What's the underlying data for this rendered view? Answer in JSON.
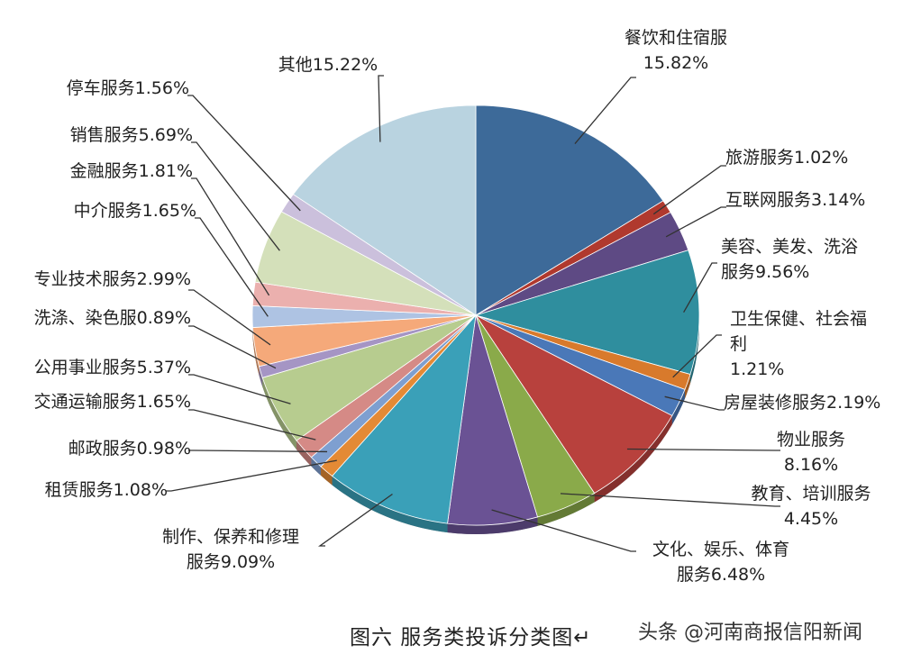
{
  "chart_data": {
    "type": "pie",
    "title": "",
    "caption": "图六  服务类投诉分类图↵",
    "slices": [
      {
        "label": "餐饮和住宿服",
        "value": 15.82,
        "value_label": "15.82%",
        "color": "#3D6A99"
      },
      {
        "label": "旅游服务",
        "value": 1.02,
        "value_label": "1.02%",
        "color": "#B0392E"
      },
      {
        "label": "互联网服务",
        "value": 3.14,
        "value_label": "3.14%",
        "color": "#5E4A84"
      },
      {
        "label": "美容、美发、洗浴服务",
        "value": 9.56,
        "value_label": "9.56%",
        "color": "#2F8E9E"
      },
      {
        "label": "卫生保健、社会福利",
        "value": 1.21,
        "value_label": "1.21%",
        "color": "#D87A2C"
      },
      {
        "label": "房屋装修服务",
        "value": 2.19,
        "value_label": "2.19%",
        "color": "#4A78B8"
      },
      {
        "label": "物业服务",
        "value": 8.16,
        "value_label": "8.16%",
        "color": "#B8413D"
      },
      {
        "label": "教育、培训服务",
        "value": 4.45,
        "value_label": "4.45%",
        "color": "#8AAA4A"
      },
      {
        "label": "文化、娱乐、体育服务",
        "value": 6.48,
        "value_label": "6.48%",
        "color": "#6A5294"
      },
      {
        "label": "制作、保养和修理服务",
        "value": 9.09,
        "value_label": "9.09%",
        "color": "#3AA0B8"
      },
      {
        "label": "租赁服务",
        "value": 1.08,
        "value_label": "1.08%",
        "color": "#E48A35"
      },
      {
        "label": "邮政服务",
        "value": 0.98,
        "value_label": "0.98%",
        "color": "#7E9FD0"
      },
      {
        "label": "交通运输服务",
        "value": 1.65,
        "value_label": "1.65%",
        "color": "#D58A86"
      },
      {
        "label": "公用事业服务",
        "value": 5.37,
        "value_label": "5.37%",
        "color": "#B7CC8F"
      },
      {
        "label": "洗涤、染色服",
        "value": 0.89,
        "value_label": "0.89%",
        "color": "#A595C4"
      },
      {
        "label": "专业技术服务",
        "value": 2.99,
        "value_label": "2.99%",
        "color": "#F5A97A"
      },
      {
        "label": "中介服务",
        "value": 1.65,
        "value_label": "1.65%",
        "color": "#AEC3E3"
      },
      {
        "label": "金融服务",
        "value": 1.81,
        "value_label": "1.81%",
        "color": "#EBB0AE"
      },
      {
        "label": "销售服务",
        "value": 5.69,
        "value_label": "5.69%",
        "color": "#D4E0BA"
      },
      {
        "label": "停车服务",
        "value": 1.56,
        "value_label": "1.56%",
        "color": "#CBC0DC"
      },
      {
        "label": "其他",
        "value": 15.22,
        "value_label": "15.22%",
        "color": "#B9D3E0"
      }
    ],
    "label_lines": [
      [
        "餐饮和住宿服",
        "15.82%"
      ],
      [
        "旅游服务1.02%"
      ],
      [
        "互联网服务3.14%"
      ],
      [
        "美容、美发、洗浴",
        "服务9.56%"
      ],
      [
        "卫生保健、社会福",
        "利",
        "1.21%"
      ],
      [
        "房屋装修服务2.19%"
      ],
      [
        "物业服务",
        "8.16%"
      ],
      [
        "教育、培训服务",
        "4.45%"
      ],
      [
        "文化、娱乐、体育",
        "服务6.48%"
      ],
      [
        "制作、保养和修理",
        "服务9.09%"
      ],
      [
        "租赁服务1.08%"
      ],
      [
        "邮政服务0.98%"
      ],
      [
        "交通运输服务1.65%"
      ],
      [
        "公用事业服务5.37%"
      ],
      [
        "洗涤、染色服0.89%"
      ],
      [
        "专业技术服务2.99%"
      ],
      [
        "中介服务1.65%"
      ],
      [
        "金融服务1.81%"
      ],
      [
        "销售服务5.69%"
      ],
      [
        "停车服务1.56%"
      ],
      [
        "其他15.22%"
      ]
    ]
  },
  "watermark": "头条 @河南商报信阳新闻"
}
